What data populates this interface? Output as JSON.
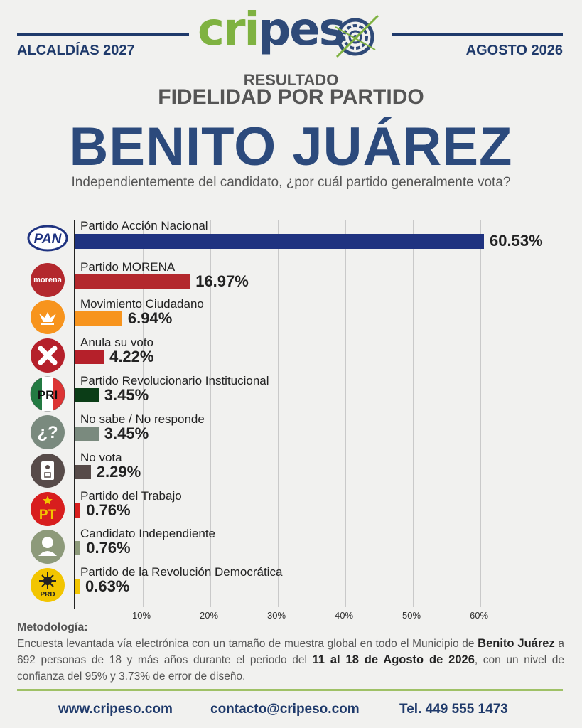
{
  "header": {
    "left_label": "ALCALDÍAS 2027",
    "right_label": "AGOSTO 2026",
    "logo_text_green": "cri",
    "logo_text_blue": "peso",
    "subtitle_1": "RESULTADO",
    "subtitle_2": "FIDELIDAD POR PARTIDO",
    "title": "BENITO JUÁREZ",
    "question": "Independientemente del candidato, ¿por cuál partido generalmente vota?"
  },
  "chart_data": {
    "type": "bar",
    "orientation": "horizontal",
    "xlim": [
      0,
      60
    ],
    "ticks": [
      "10%",
      "20%",
      "30%",
      "40%",
      "50%",
      "60%"
    ],
    "grid": true,
    "categories": [
      "Partido Acción Nacional",
      "Partido MORENA",
      "Movimiento Ciudadano",
      "Anula su voto",
      "Partido Revolucionario Institucional",
      "No sabe / No responde",
      "No vota",
      "Partido del Trabajo",
      "Candidato Independiente",
      "Partido de la Revolución Democrática"
    ],
    "values": [
      60.53,
      16.97,
      6.94,
      4.22,
      3.45,
      3.45,
      2.29,
      0.76,
      0.76,
      0.63
    ],
    "value_labels": [
      "60.53%",
      "16.97%",
      "6.94%",
      "4.22%",
      "3.45%",
      "3.45%",
      "2.29%",
      "0.76%",
      "0.76%",
      "0.63%"
    ],
    "colors": [
      "#1f3380",
      "#b3282d",
      "#f7941d",
      "#b5202a",
      "#0b3d17",
      "#7a8a7e",
      "#574b49",
      "#d81e1e",
      "#8d9a7a",
      "#f2c500"
    ],
    "icons": [
      "pan-logo-icon",
      "morena-logo-icon",
      "movimiento-ciudadano-logo-icon",
      "cross-icon",
      "pri-logo-icon",
      "question-icon",
      "ballot-icon",
      "pt-logo-icon",
      "person-icon",
      "prd-logo-icon"
    ],
    "icon_texts": [
      "PAN",
      "morena",
      "",
      "X",
      "PRI",
      "¿?",
      "",
      "PT",
      "",
      "PRD"
    ]
  },
  "methodology": {
    "heading": "Metodología:",
    "text_1": "Encuesta levantada vía electrónica con un tamaño de muestra global en todo el Municipio de",
    "bold_1": "Benito Juárez",
    "text_2": " a 692 personas de 18 y más años durante el periodo del ",
    "bold_2": "11 al 18 de Agosto de 2026",
    "text_3": ", con un nivel de confianza del 95% y 3.73% de error de diseño."
  },
  "footer": {
    "website": "www.cripeso.com",
    "email": "contacto@cripeso.com",
    "phone": "Tel. 449 555 1473"
  }
}
